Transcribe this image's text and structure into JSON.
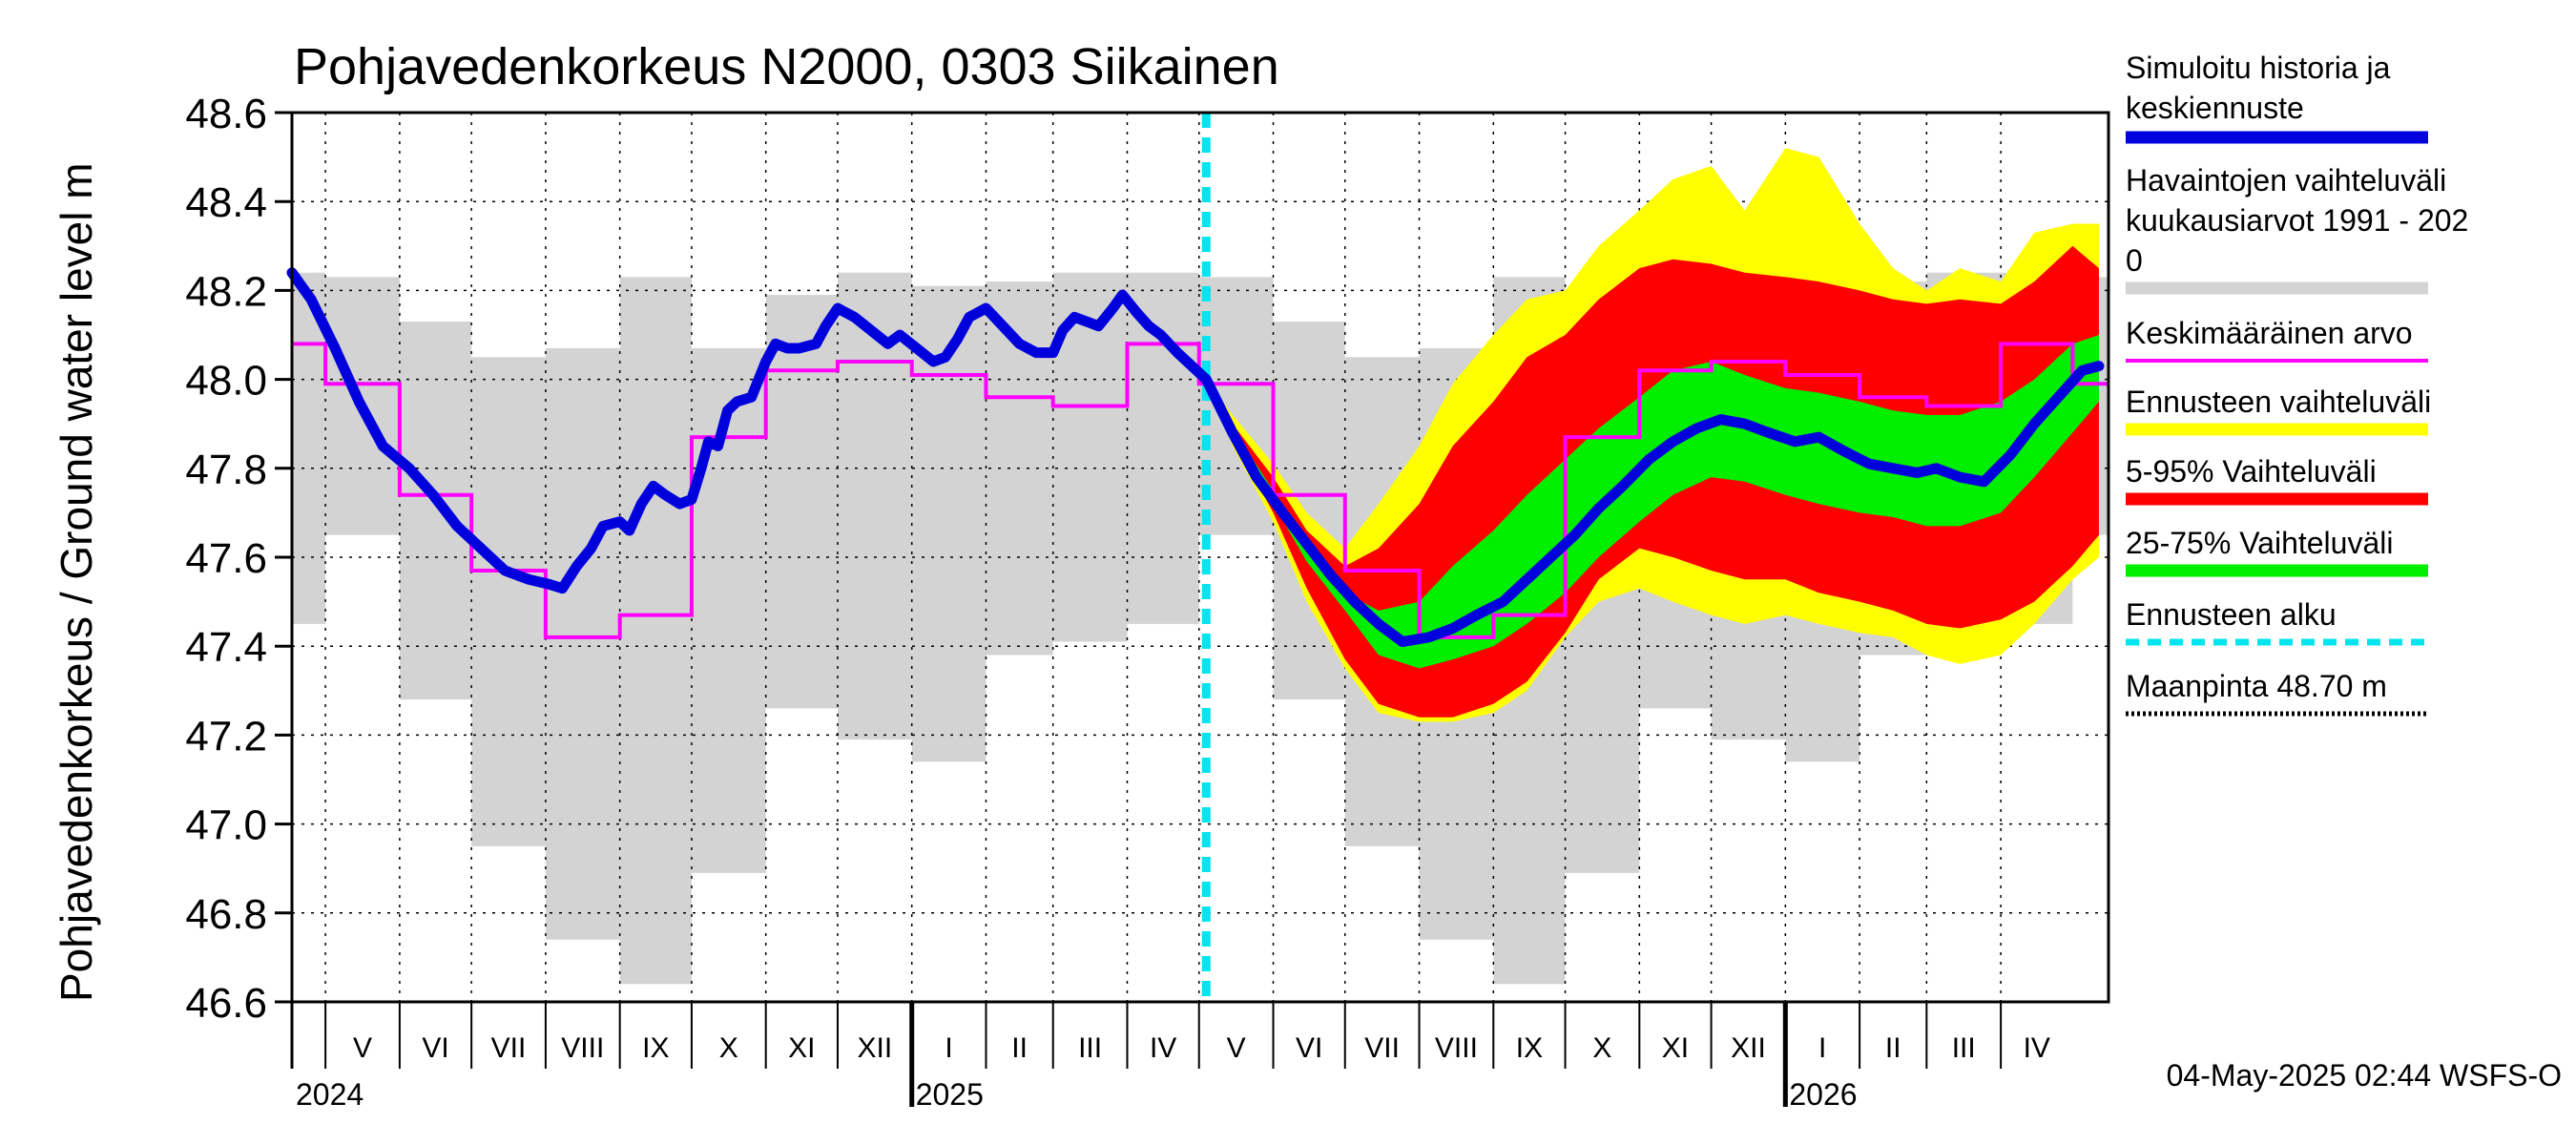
{
  "chart_data": {
    "type": "area",
    "title": "Pohjavedenkorkeus N2000, 0303 Siikainen",
    "ylabel": "Pohjavedenkorkeus / Ground water level   m",
    "ylim": [
      46.6,
      48.6
    ],
    "yticks": [
      46.6,
      46.8,
      47.0,
      47.2,
      47.4,
      47.6,
      47.8,
      48.0,
      48.2,
      48.4,
      48.6
    ],
    "ytick_labels": [
      "46.6",
      "46.8",
      "47.0",
      "47.2",
      "47.4",
      "47.6",
      "47.8",
      "48.0",
      "48.2",
      "48.4",
      "48.6"
    ],
    "xlim": [
      "2024-04-17",
      "2026-05-16"
    ],
    "months": [
      {
        "label": "V",
        "start": "2024-05-01",
        "end": "2024-06-01"
      },
      {
        "label": "VI",
        "start": "2024-06-01",
        "end": "2024-07-01"
      },
      {
        "label": "VII",
        "start": "2024-07-01",
        "end": "2024-08-01"
      },
      {
        "label": "VIII",
        "start": "2024-08-01",
        "end": "2024-09-01"
      },
      {
        "label": "IX",
        "start": "2024-09-01",
        "end": "2024-10-01"
      },
      {
        "label": "X",
        "start": "2024-10-01",
        "end": "2024-11-01"
      },
      {
        "label": "XI",
        "start": "2024-11-01",
        "end": "2024-12-01"
      },
      {
        "label": "XII",
        "start": "2024-12-01",
        "end": "2025-01-01"
      },
      {
        "label": "I",
        "start": "2025-01-01",
        "end": "2025-02-01"
      },
      {
        "label": "II",
        "start": "2025-02-01",
        "end": "2025-03-01"
      },
      {
        "label": "III",
        "start": "2025-03-01",
        "end": "2025-04-01"
      },
      {
        "label": "IV",
        "start": "2025-04-01",
        "end": "2025-05-01"
      },
      {
        "label": "V",
        "start": "2025-05-01",
        "end": "2025-06-01"
      },
      {
        "label": "VI",
        "start": "2025-06-01",
        "end": "2025-07-01"
      },
      {
        "label": "VII",
        "start": "2025-07-01",
        "end": "2025-08-01"
      },
      {
        "label": "VIII",
        "start": "2025-08-01",
        "end": "2025-09-01"
      },
      {
        "label": "IX",
        "start": "2025-09-01",
        "end": "2025-10-01"
      },
      {
        "label": "X",
        "start": "2025-10-01",
        "end": "2025-11-01"
      },
      {
        "label": "XI",
        "start": "2025-11-01",
        "end": "2025-12-01"
      },
      {
        "label": "XII",
        "start": "2025-12-01",
        "end": "2026-01-01"
      },
      {
        "label": "I",
        "start": "2026-01-01",
        "end": "2026-02-01"
      },
      {
        "label": "II",
        "start": "2026-02-01",
        "end": "2026-03-01"
      },
      {
        "label": "III",
        "start": "2026-03-01",
        "end": "2026-04-01"
      },
      {
        "label": "IV",
        "start": "2026-04-01",
        "end": "2026-05-01"
      }
    ],
    "years": [
      {
        "label": "2024",
        "date": "2024-04-17"
      },
      {
        "label": "2025",
        "date": "2025-01-01"
      },
      {
        "label": "2026",
        "date": "2026-01-01"
      }
    ],
    "forecast_start": "2025-05-04",
    "observed_monthly": {
      "name": "Havaintojen vaihteluväli kuukausiarvot 1991 - 2020",
      "color": "#d3d3d3",
      "min": [
        47.65,
        47.28,
        46.95,
        46.74,
        46.64,
        46.89,
        47.26,
        47.19,
        47.14,
        47.38,
        47.41,
        47.45
      ],
      "max": [
        48.23,
        48.13,
        48.05,
        48.07,
        48.23,
        48.07,
        48.19,
        48.24,
        48.21,
        48.22,
        48.24,
        48.24
      ],
      "mean": [
        47.99,
        47.74,
        47.57,
        47.42,
        47.47,
        47.87,
        48.02,
        48.04,
        48.01,
        47.96,
        47.94,
        48.08
      ],
      "mean_name": "Keskimääräinen arvo",
      "mean_color": "#ff00ff"
    },
    "series": [
      {
        "name": "Simuloitu historia ja keskiennuste",
        "color": "#0000dd",
        "points": [
          [
            "2024-04-17",
            48.24
          ],
          [
            "2024-04-25",
            48.18
          ],
          [
            "2024-05-05",
            48.07
          ],
          [
            "2024-05-15",
            47.95
          ],
          [
            "2024-05-25",
            47.85
          ],
          [
            "2024-06-05",
            47.8
          ],
          [
            "2024-06-15",
            47.74
          ],
          [
            "2024-06-25",
            47.67
          ],
          [
            "2024-07-05",
            47.62
          ],
          [
            "2024-07-15",
            47.57
          ],
          [
            "2024-07-25",
            47.55
          ],
          [
            "2024-08-02",
            47.54
          ],
          [
            "2024-08-08",
            47.53
          ],
          [
            "2024-08-14",
            47.58
          ],
          [
            "2024-08-20",
            47.62
          ],
          [
            "2024-08-25",
            47.67
          ],
          [
            "2024-09-01",
            47.68
          ],
          [
            "2024-09-05",
            47.66
          ],
          [
            "2024-09-10",
            47.72
          ],
          [
            "2024-09-15",
            47.76
          ],
          [
            "2024-09-20",
            47.74
          ],
          [
            "2024-09-26",
            47.72
          ],
          [
            "2024-10-01",
            47.73
          ],
          [
            "2024-10-05",
            47.8
          ],
          [
            "2024-10-08",
            47.86
          ],
          [
            "2024-10-12",
            47.85
          ],
          [
            "2024-10-16",
            47.93
          ],
          [
            "2024-10-20",
            47.95
          ],
          [
            "2024-10-26",
            47.96
          ],
          [
            "2024-11-01",
            48.04
          ],
          [
            "2024-11-05",
            48.08
          ],
          [
            "2024-11-10",
            48.07
          ],
          [
            "2024-11-15",
            48.07
          ],
          [
            "2024-11-22",
            48.08
          ],
          [
            "2024-11-26",
            48.12
          ],
          [
            "2024-12-01",
            48.16
          ],
          [
            "2024-12-08",
            48.14
          ],
          [
            "2024-12-15",
            48.11
          ],
          [
            "2024-12-22",
            48.08
          ],
          [
            "2024-12-27",
            48.1
          ],
          [
            "2025-01-03",
            48.07
          ],
          [
            "2025-01-10",
            48.04
          ],
          [
            "2025-01-15",
            48.05
          ],
          [
            "2025-01-20",
            48.09
          ],
          [
            "2025-01-25",
            48.14
          ],
          [
            "2025-02-01",
            48.16
          ],
          [
            "2025-02-08",
            48.12
          ],
          [
            "2025-02-15",
            48.08
          ],
          [
            "2025-02-22",
            48.06
          ],
          [
            "2025-03-01",
            48.06
          ],
          [
            "2025-03-05",
            48.11
          ],
          [
            "2025-03-10",
            48.14
          ],
          [
            "2025-03-15",
            48.13
          ],
          [
            "2025-03-20",
            48.12
          ],
          [
            "2025-03-26",
            48.16
          ],
          [
            "2025-03-30",
            48.19
          ],
          [
            "2025-04-05",
            48.15
          ],
          [
            "2025-04-10",
            48.12
          ],
          [
            "2025-04-15",
            48.1
          ],
          [
            "2025-04-22",
            48.06
          ],
          [
            "2025-05-04",
            48.0
          ],
          [
            "2025-05-15",
            47.88
          ],
          [
            "2025-05-25",
            47.78
          ],
          [
            "2025-06-05",
            47.7
          ],
          [
            "2025-06-15",
            47.63
          ],
          [
            "2025-06-25",
            47.56
          ],
          [
            "2025-07-05",
            47.5
          ],
          [
            "2025-07-15",
            47.45
          ],
          [
            "2025-07-25",
            47.41
          ],
          [
            "2025-08-05",
            47.42
          ],
          [
            "2025-08-15",
            47.44
          ],
          [
            "2025-08-25",
            47.47
          ],
          [
            "2025-09-05",
            47.5
          ],
          [
            "2025-09-15",
            47.55
          ],
          [
            "2025-09-25",
            47.6
          ],
          [
            "2025-10-05",
            47.65
          ],
          [
            "2025-10-15",
            47.71
          ],
          [
            "2025-10-25",
            47.76
          ],
          [
            "2025-11-05",
            47.82
          ],
          [
            "2025-11-15",
            47.86
          ],
          [
            "2025-11-25",
            47.89
          ],
          [
            "2025-12-05",
            47.91
          ],
          [
            "2025-12-15",
            47.9
          ],
          [
            "2025-12-25",
            47.88
          ],
          [
            "2026-01-05",
            47.86
          ],
          [
            "2026-01-15",
            47.87
          ],
          [
            "2026-01-25",
            47.84
          ],
          [
            "2026-02-05",
            47.81
          ],
          [
            "2026-02-15",
            47.8
          ],
          [
            "2026-02-25",
            47.79
          ],
          [
            "2026-03-05",
            47.8
          ],
          [
            "2026-03-15",
            47.78
          ],
          [
            "2026-03-25",
            47.77
          ],
          [
            "2026-04-05",
            47.83
          ],
          [
            "2026-04-15",
            47.9
          ],
          [
            "2026-04-25",
            47.96
          ],
          [
            "2026-05-05",
            48.02
          ],
          [
            "2026-05-12",
            48.03
          ]
        ]
      }
    ],
    "forecast_bands": {
      "dates": [
        "2025-05-04",
        "2025-05-15",
        "2025-06-01",
        "2025-06-15",
        "2025-07-01",
        "2025-07-15",
        "2025-08-01",
        "2025-08-15",
        "2025-09-01",
        "2025-09-15",
        "2025-10-01",
        "2025-10-15",
        "2025-11-01",
        "2025-11-15",
        "2025-12-01",
        "2025-12-15",
        "2026-01-01",
        "2026-01-15",
        "2026-02-01",
        "2026-02-15",
        "2026-03-01",
        "2026-03-15",
        "2026-04-01",
        "2026-04-15",
        "2026-05-01",
        "2026-05-12"
      ],
      "ennuste": {
        "name": "Ennusteen vaihteluväli",
        "color": "#ffff00",
        "low": [
          48.0,
          47.85,
          47.68,
          47.5,
          47.35,
          47.25,
          47.23,
          47.23,
          47.25,
          47.3,
          47.42,
          47.5,
          47.53,
          47.5,
          47.47,
          47.45,
          47.47,
          47.45,
          47.43,
          47.42,
          47.38,
          47.36,
          47.38,
          47.45,
          47.55,
          47.6
        ],
        "high": [
          48.0,
          47.92,
          47.81,
          47.7,
          47.62,
          47.72,
          47.85,
          47.99,
          48.1,
          48.18,
          48.2,
          48.3,
          48.38,
          48.45,
          48.48,
          48.38,
          48.52,
          48.5,
          48.35,
          48.25,
          48.2,
          48.25,
          48.22,
          48.33,
          48.35,
          48.35
        ]
      },
      "p5_95": {
        "name": "5-95% Vaihteluväli",
        "color": "#ff0000",
        "low": [
          48.0,
          47.87,
          47.7,
          47.53,
          47.37,
          47.27,
          47.24,
          47.24,
          47.27,
          47.32,
          47.43,
          47.55,
          47.62,
          47.6,
          47.57,
          47.55,
          47.55,
          47.52,
          47.5,
          47.48,
          47.45,
          47.44,
          47.46,
          47.5,
          47.58,
          47.65
        ],
        "high": [
          48.0,
          47.9,
          47.78,
          47.66,
          47.58,
          47.62,
          47.72,
          47.85,
          47.95,
          48.05,
          48.1,
          48.18,
          48.25,
          48.27,
          48.26,
          48.24,
          48.23,
          48.22,
          48.2,
          48.18,
          48.17,
          48.18,
          48.17,
          48.22,
          48.3,
          48.25
        ]
      },
      "p25_75": {
        "name": "25-75% Vaihteluväli",
        "color": "#00ee00",
        "low": [
          48.0,
          47.88,
          47.72,
          47.59,
          47.48,
          47.38,
          47.35,
          47.37,
          47.4,
          47.45,
          47.52,
          47.6,
          47.68,
          47.74,
          47.78,
          47.77,
          47.74,
          47.72,
          47.7,
          47.69,
          47.67,
          47.67,
          47.7,
          47.78,
          47.88,
          47.95
        ],
        "high": [
          48.0,
          47.89,
          47.75,
          47.63,
          47.52,
          47.48,
          47.5,
          47.58,
          47.66,
          47.74,
          47.82,
          47.89,
          47.96,
          48.02,
          48.04,
          48.01,
          47.98,
          47.97,
          47.95,
          47.93,
          47.92,
          47.92,
          47.95,
          48.0,
          48.08,
          48.1
        ]
      }
    },
    "legend": [
      {
        "key": "sim",
        "lines": [
          "Simuloitu historia ja",
          "keskiennuste"
        ],
        "color": "#0000dd",
        "style": "thick"
      },
      {
        "key": "obs",
        "lines": [
          "Havaintojen vaihteluväli",
          " kuukausiarvot 1991 - 202",
          "0"
        ],
        "color": "#d3d3d3",
        "style": "thick"
      },
      {
        "key": "mean",
        "lines": [
          "Keskimääräinen arvo"
        ],
        "color": "#ff00ff",
        "style": "thin"
      },
      {
        "key": "ennuste",
        "lines": [
          "Ennusteen vaihteluväli"
        ],
        "color": "#ffff00",
        "style": "thick"
      },
      {
        "key": "p595",
        "lines": [
          "5-95% Vaihteluväli"
        ],
        "color": "#ff0000",
        "style": "thick"
      },
      {
        "key": "p2575",
        "lines": [
          "25-75% Vaihteluväli"
        ],
        "color": "#00ee00",
        "style": "thick"
      },
      {
        "key": "start",
        "lines": [
          "Ennusteen alku"
        ],
        "color": "#00e5ee",
        "style": "dashed"
      },
      {
        "key": "ground",
        "lines": [
          "Maanpinta 48.70 m"
        ],
        "color": "#000000",
        "style": "dotted"
      }
    ],
    "legend_placement": "right",
    "grid": true
  },
  "timestamp": "04-May-2025 02:44 WSFS-O"
}
